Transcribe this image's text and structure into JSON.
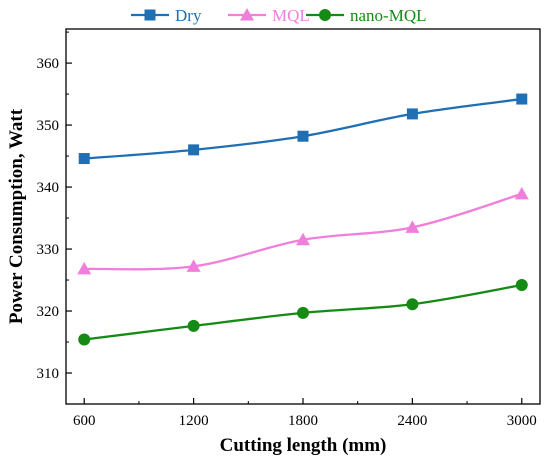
{
  "chart_data": {
    "type": "line",
    "title": "",
    "xlabel": "Cutting length (mm)",
    "ylabel": "Power Consumption, Watt",
    "x": [
      600,
      1200,
      1800,
      2400,
      3000
    ],
    "xticks": [
      "600",
      "1200",
      "1800",
      "2400",
      "3000"
    ],
    "xlim": [
      500,
      3100
    ],
    "yticks": [
      "310",
      "320",
      "330",
      "340",
      "350",
      "360"
    ],
    "ylim": [
      305,
      365.5
    ],
    "grid": false,
    "legend_position": "top",
    "series": [
      {
        "name": "Dry",
        "values": [
          344.6,
          346.0,
          348.2,
          351.8,
          354.2
        ],
        "color": "#1f6fb4",
        "marker": "square"
      },
      {
        "name": "MQL",
        "values": [
          326.8,
          327.2,
          331.5,
          333.5,
          338.9
        ],
        "color": "#f07fdc",
        "marker": "triangle"
      },
      {
        "name": "nano-MQL",
        "values": [
          315.4,
          317.6,
          319.7,
          321.1,
          324.2
        ],
        "color": "#158a15",
        "marker": "circle"
      }
    ]
  }
}
